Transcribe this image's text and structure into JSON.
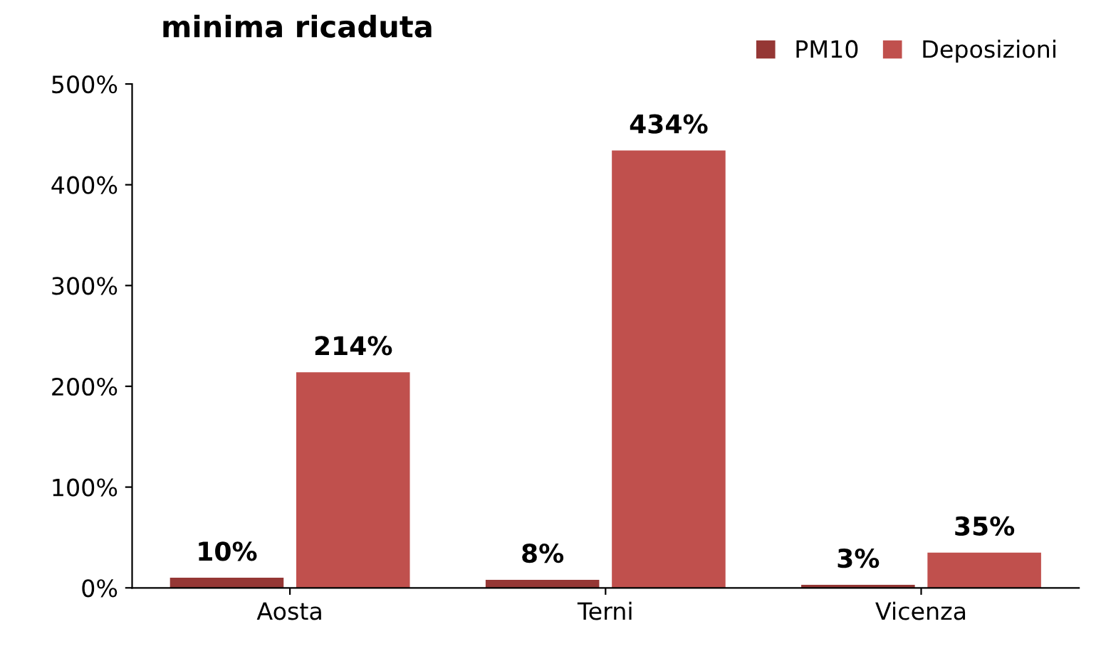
{
  "chart_data": {
    "type": "bar",
    "title": "minima ricaduta",
    "categories": [
      "Aosta",
      "Terni",
      "Vicenza"
    ],
    "series": [
      {
        "name": "PM10",
        "color": "#953735",
        "values": [
          10,
          8,
          3
        ],
        "value_labels": [
          "10%",
          "8%",
          "3%"
        ]
      },
      {
        "name": "Deposizioni",
        "color": "#c0504d",
        "values": [
          214,
          434,
          35
        ],
        "value_labels": [
          "214%",
          "434%",
          "35%"
        ]
      }
    ],
    "ylim": [
      0,
      500
    ],
    "yticks": [
      {
        "value": 0,
        "label": "0%"
      },
      {
        "value": 100,
        "label": "100%"
      },
      {
        "value": 200,
        "label": "200%"
      },
      {
        "value": 300,
        "label": "300%"
      },
      {
        "value": 400,
        "label": "400%"
      },
      {
        "value": 500,
        "label": "500%"
      }
    ],
    "grid": false,
    "legend": "top right"
  }
}
